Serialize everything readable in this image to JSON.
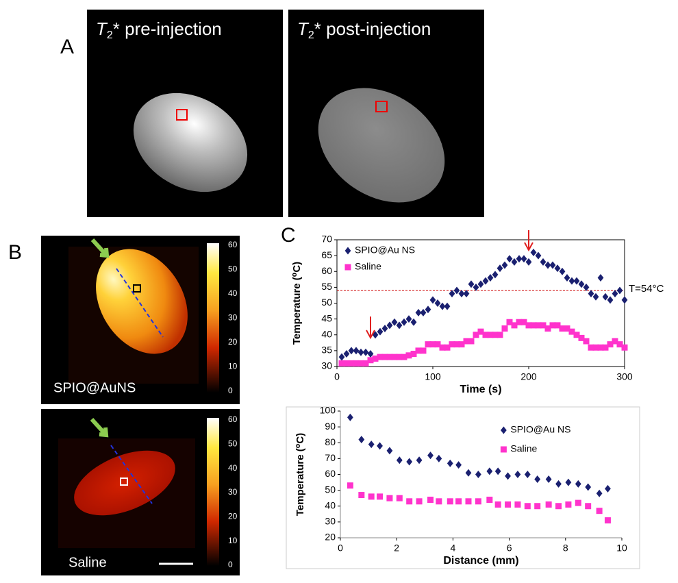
{
  "panels": {
    "A": {
      "label": "A",
      "left_title": {
        "symbol": "T",
        "subscript": "2",
        "rest": "* pre-injection"
      },
      "right_title": {
        "symbol": "T",
        "subscript": "2",
        "rest": "* post-injection"
      }
    },
    "B": {
      "label": "B",
      "top_caption": "SPIO@AuNS",
      "bottom_caption": "Saline",
      "colorbar_ticks": [
        60,
        50,
        40,
        30,
        20,
        10,
        0
      ]
    },
    "C": {
      "label": "C"
    }
  },
  "chart_data": [
    {
      "type": "scatter",
      "x_label": "Time (s)",
      "y_label": "Temperature (⁰C)",
      "x": [
        5,
        10,
        15,
        20,
        25,
        30,
        35,
        40,
        45,
        50,
        55,
        60,
        65,
        70,
        75,
        80,
        85,
        90,
        95,
        100,
        105,
        110,
        115,
        120,
        125,
        130,
        135,
        140,
        145,
        150,
        155,
        160,
        165,
        170,
        175,
        180,
        185,
        190,
        195,
        200,
        205,
        210,
        215,
        220,
        225,
        230,
        235,
        240,
        245,
        250,
        255,
        260,
        265,
        270,
        275,
        280,
        285,
        290,
        295,
        300
      ],
      "series": [
        {
          "name": "SPIO@Au NS",
          "color": "#1a2070",
          "marker": "diamond",
          "values": [
            33,
            34,
            35,
            35,
            34.5,
            34.5,
            34,
            40,
            41,
            42,
            43,
            44,
            43,
            44,
            45,
            44,
            47,
            47,
            48,
            51,
            50,
            49,
            49,
            53,
            54,
            53,
            53,
            56,
            55,
            56,
            57,
            58,
            59,
            61,
            62,
            64,
            63,
            64,
            64,
            63,
            66,
            65,
            63,
            62,
            62,
            61,
            60,
            58,
            57,
            57,
            56,
            55,
            53,
            52,
            58,
            52,
            51,
            53,
            54,
            51
          ]
        },
        {
          "name": "Saline",
          "color": "#ff33cc",
          "marker": "square",
          "values": [
            31,
            31,
            31,
            31,
            31,
            31,
            32,
            32.5,
            33,
            33,
            33,
            33,
            33,
            33,
            33.5,
            34,
            35,
            35,
            37,
            37,
            37,
            36,
            36,
            37,
            37,
            37,
            38,
            38,
            40,
            41,
            40,
            40,
            40,
            40,
            42,
            44,
            43,
            44,
            44,
            43,
            43,
            43,
            43,
            42,
            43,
            43,
            42,
            42,
            41,
            40,
            39,
            38,
            36,
            36,
            36,
            36,
            37,
            38,
            37,
            36
          ]
        }
      ],
      "threshold": {
        "value": 54,
        "label": "T=54°C",
        "color": "#cc0000"
      },
      "xlim": [
        0,
        300
      ],
      "xticks": [
        0,
        100,
        200,
        300
      ],
      "ylim": [
        30,
        70
      ],
      "yticks": [
        30,
        35,
        40,
        45,
        50,
        55,
        60,
        65,
        70
      ],
      "legend": "upper left",
      "frame": true
    },
    {
      "type": "scatter",
      "x_label": "Distance (mm)",
      "y_label": "Temperature (⁰C)",
      "x": [
        0.35,
        0.75,
        1.1,
        1.4,
        1.75,
        2.1,
        2.45,
        2.8,
        3.2,
        3.5,
        3.9,
        4.2,
        4.55,
        4.9,
        5.3,
        5.6,
        5.95,
        6.3,
        6.65,
        7.0,
        7.4,
        7.75,
        8.1,
        8.45,
        8.8,
        9.2,
        9.5
      ],
      "series": [
        {
          "name": "SPIO@Au NS",
          "color": "#1a2070",
          "marker": "diamond",
          "values": [
            96,
            82,
            79,
            78,
            75,
            69,
            68,
            69,
            72,
            70,
            67,
            66,
            61,
            60,
            62,
            62,
            59,
            60,
            60,
            57,
            57,
            54,
            55,
            54,
            52,
            48,
            51
          ]
        },
        {
          "name": "Saline",
          "color": "#ff33cc",
          "marker": "square",
          "values": [
            53,
            47,
            46,
            46,
            45,
            45,
            43,
            43,
            44,
            43,
            43,
            43,
            43,
            43,
            44,
            41,
            41,
            41,
            40,
            40,
            41,
            40,
            41,
            42,
            40,
            37,
            31
          ]
        }
      ],
      "xlim": [
        0,
        10
      ],
      "xticks": [
        0,
        2,
        4,
        6,
        8,
        10
      ],
      "ylim": [
        20,
        100
      ],
      "yticks": [
        20,
        30,
        40,
        50,
        60,
        70,
        80,
        90,
        100
      ],
      "legend": "upper right",
      "frame": false
    }
  ]
}
